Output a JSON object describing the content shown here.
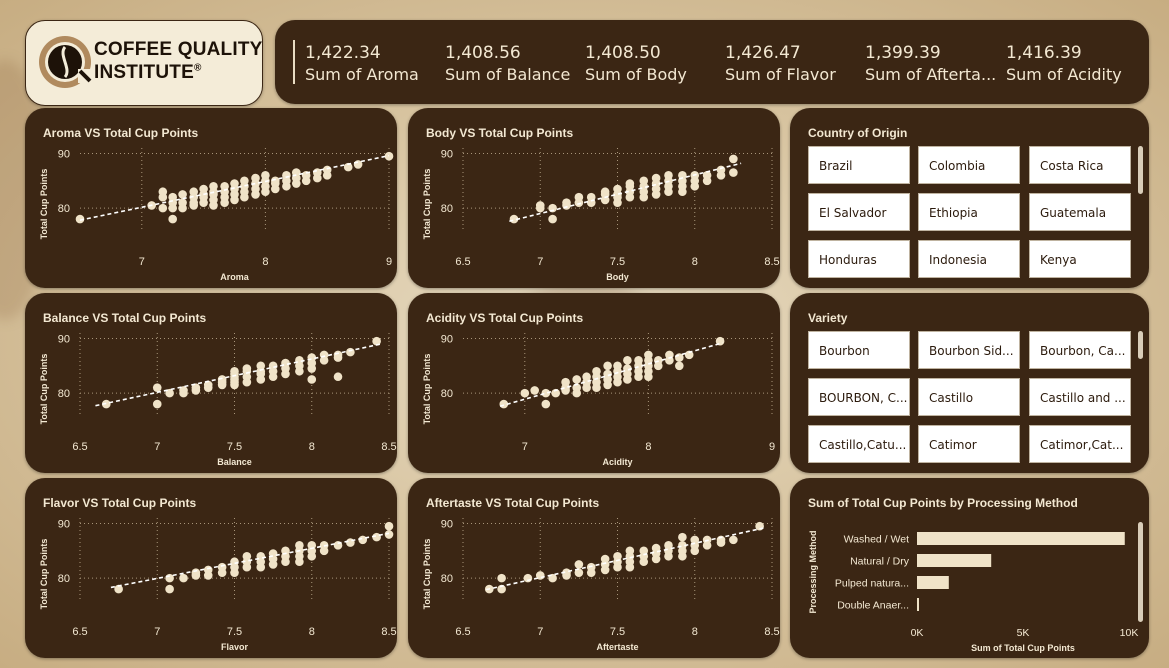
{
  "logo": {
    "line1": "COFFEE QUALITY",
    "line2": "INSTITUTE",
    "mark": "®"
  },
  "kpis": [
    {
      "value": "1,422.34",
      "label": "Sum of Aroma"
    },
    {
      "value": "1,408.56",
      "label": "Sum of Balance"
    },
    {
      "value": "1,408.50",
      "label": "Sum of Body"
    },
    {
      "value": "1,426.47",
      "label": "Sum of Flavor"
    },
    {
      "value": "1,399.39",
      "label": "Sum of Afterta..."
    },
    {
      "value": "1,416.39",
      "label": "Sum of Acidity"
    }
  ],
  "slicers": {
    "country": {
      "title": "Country of Origin",
      "items": [
        "Brazil",
        "Colombia",
        "Costa Rica",
        "El Salvador",
        "Ethiopia",
        "Guatemala",
        "Honduras",
        "Indonesia",
        "Kenya"
      ]
    },
    "variety": {
      "title": "Variety",
      "items": [
        "Bourbon",
        "Bourbon Sid...",
        "Bourbon, Ca...",
        "BOURBON, C...",
        "Castillo",
        "Castillo and ...",
        "Castillo,Catu...",
        "Catimor",
        "Catimor,Cat..."
      ]
    }
  },
  "colors": {
    "panel": "#3b2614",
    "marker": "#f0e3c8",
    "text": "#f3e8d2",
    "grid": "#a8957a"
  },
  "chart_data": [
    {
      "type": "scatter",
      "title": "Aroma VS Total Cup Points",
      "xlabel": "Aroma",
      "ylabel": "Total Cup Points",
      "xlim": [
        6.5,
        9
      ],
      "ylim": [
        76,
        91
      ],
      "xticks": [
        7,
        8,
        9
      ],
      "yticks": [
        80,
        90
      ],
      "trendline": [
        [
          6.5,
          77.8
        ],
        [
          9,
          89.6
        ]
      ],
      "points": [
        [
          6.5,
          78
        ],
        [
          7.08,
          80.5
        ],
        [
          7.17,
          80
        ],
        [
          7.17,
          82
        ],
        [
          7.17,
          83
        ],
        [
          7.25,
          78
        ],
        [
          7.25,
          80
        ],
        [
          7.25,
          81
        ],
        [
          7.25,
          82
        ],
        [
          7.33,
          80
        ],
        [
          7.33,
          81
        ],
        [
          7.33,
          82.5
        ],
        [
          7.42,
          80.5
        ],
        [
          7.42,
          81
        ],
        [
          7.42,
          82
        ],
        [
          7.42,
          83
        ],
        [
          7.5,
          81
        ],
        [
          7.5,
          82
        ],
        [
          7.5,
          82.5
        ],
        [
          7.5,
          83.5
        ],
        [
          7.58,
          80.5
        ],
        [
          7.58,
          81.5
        ],
        [
          7.58,
          82.5
        ],
        [
          7.58,
          83
        ],
        [
          7.58,
          84
        ],
        [
          7.67,
          81
        ],
        [
          7.67,
          82
        ],
        [
          7.67,
          83
        ],
        [
          7.67,
          84
        ],
        [
          7.75,
          81.5
        ],
        [
          7.75,
          82.5
        ],
        [
          7.75,
          83.5
        ],
        [
          7.75,
          84.5
        ],
        [
          7.83,
          82
        ],
        [
          7.83,
          83
        ],
        [
          7.83,
          84
        ],
        [
          7.83,
          85
        ],
        [
          7.92,
          82.5
        ],
        [
          7.92,
          83.5
        ],
        [
          7.92,
          84.5
        ],
        [
          7.92,
          85.5
        ],
        [
          8.0,
          83
        ],
        [
          8.0,
          84
        ],
        [
          8.0,
          85
        ],
        [
          8.0,
          86
        ],
        [
          8.08,
          83.5
        ],
        [
          8.08,
          84.5
        ],
        [
          8.08,
          85
        ],
        [
          8.17,
          84
        ],
        [
          8.17,
          85
        ],
        [
          8.17,
          86
        ],
        [
          8.25,
          84.5
        ],
        [
          8.25,
          85.5
        ],
        [
          8.25,
          86.5
        ],
        [
          8.33,
          85
        ],
        [
          8.33,
          86
        ],
        [
          8.42,
          85.5
        ],
        [
          8.42,
          86.5
        ],
        [
          8.5,
          86
        ],
        [
          8.5,
          87
        ],
        [
          8.67,
          87.5
        ],
        [
          8.75,
          88
        ],
        [
          9.0,
          89.5
        ]
      ]
    },
    {
      "type": "scatter",
      "title": "Body VS Total Cup Points",
      "xlabel": "Body",
      "ylabel": "Total Cup Points",
      "xlim": [
        6.5,
        8.5
      ],
      "ylim": [
        76,
        91
      ],
      "xticks": [
        6.5,
        7.0,
        7.5,
        8.0,
        8.5
      ],
      "yticks": [
        80,
        90
      ],
      "trendline": [
        [
          6.8,
          77.6
        ],
        [
          8.3,
          88.2
        ]
      ],
      "points": [
        [
          6.83,
          78
        ],
        [
          7.0,
          80.5
        ],
        [
          7.0,
          80
        ],
        [
          7.08,
          78
        ],
        [
          7.08,
          80
        ],
        [
          7.17,
          80.5
        ],
        [
          7.17,
          81
        ],
        [
          7.25,
          81
        ],
        [
          7.25,
          82
        ],
        [
          7.33,
          81
        ],
        [
          7.33,
          82
        ],
        [
          7.42,
          81.5
        ],
        [
          7.42,
          82.5
        ],
        [
          7.42,
          83
        ],
        [
          7.5,
          81
        ],
        [
          7.5,
          82
        ],
        [
          7.5,
          82.5
        ],
        [
          7.5,
          83.5
        ],
        [
          7.58,
          82
        ],
        [
          7.58,
          83
        ],
        [
          7.58,
          84
        ],
        [
          7.58,
          84.5
        ],
        [
          7.67,
          82
        ],
        [
          7.67,
          83
        ],
        [
          7.67,
          84
        ],
        [
          7.67,
          85
        ],
        [
          7.75,
          82.5
        ],
        [
          7.75,
          83.5
        ],
        [
          7.75,
          84.5
        ],
        [
          7.75,
          85.5
        ],
        [
          7.83,
          83
        ],
        [
          7.83,
          84
        ],
        [
          7.83,
          85
        ],
        [
          7.83,
          86
        ],
        [
          7.92,
          83
        ],
        [
          7.92,
          84
        ],
        [
          7.92,
          85
        ],
        [
          7.92,
          86
        ],
        [
          8.0,
          84
        ],
        [
          8.0,
          85
        ],
        [
          8.0,
          86
        ],
        [
          8.08,
          85
        ],
        [
          8.08,
          86
        ],
        [
          8.17,
          86
        ],
        [
          8.17,
          87
        ],
        [
          8.25,
          86.5
        ],
        [
          8.25,
          89
        ]
      ]
    },
    {
      "type": "scatter",
      "title": "Balance VS Total Cup Points",
      "xlabel": "Balance",
      "ylabel": "Total Cup Points",
      "xlim": [
        6.5,
        8.5
      ],
      "ylim": [
        76,
        91
      ],
      "xticks": [
        6.5,
        7.0,
        7.5,
        8.0,
        8.5
      ],
      "yticks": [
        80,
        90
      ],
      "trendline": [
        [
          6.6,
          77.7
        ],
        [
          8.45,
          89
        ]
      ],
      "points": [
        [
          6.67,
          78
        ],
        [
          7.0,
          78
        ],
        [
          7.0,
          81
        ],
        [
          7.08,
          80
        ],
        [
          7.17,
          80
        ],
        [
          7.17,
          80.5
        ],
        [
          7.25,
          80.5
        ],
        [
          7.25,
          81
        ],
        [
          7.33,
          81
        ],
        [
          7.33,
          81.5
        ],
        [
          7.42,
          81.5
        ],
        [
          7.42,
          82
        ],
        [
          7.42,
          82.5
        ],
        [
          7.5,
          81.5
        ],
        [
          7.5,
          82
        ],
        [
          7.5,
          82.5
        ],
        [
          7.5,
          83
        ],
        [
          7.5,
          83.5
        ],
        [
          7.5,
          84
        ],
        [
          7.58,
          82
        ],
        [
          7.58,
          83
        ],
        [
          7.58,
          84
        ],
        [
          7.58,
          84.5
        ],
        [
          7.67,
          82.5
        ],
        [
          7.67,
          83.5
        ],
        [
          7.67,
          84
        ],
        [
          7.67,
          85
        ],
        [
          7.75,
          83
        ],
        [
          7.75,
          84
        ],
        [
          7.75,
          85
        ],
        [
          7.83,
          83.5
        ],
        [
          7.83,
          84.5
        ],
        [
          7.83,
          85.5
        ],
        [
          7.92,
          84
        ],
        [
          7.92,
          85
        ],
        [
          7.92,
          86
        ],
        [
          8.0,
          84.5
        ],
        [
          8.0,
          85.5
        ],
        [
          8.0,
          86.5
        ],
        [
          8.0,
          82.5
        ],
        [
          8.08,
          86
        ],
        [
          8.08,
          87
        ],
        [
          8.17,
          86.5
        ],
        [
          8.17,
          87
        ],
        [
          8.17,
          83
        ],
        [
          8.25,
          87.5
        ],
        [
          8.42,
          89.5
        ]
      ]
    },
    {
      "type": "scatter",
      "title": "Acidity VS Total Cup Points",
      "xlabel": "Acidity",
      "ylabel": "Total Cup Points",
      "xlim": [
        6.5,
        9
      ],
      "ylim": [
        76,
        91
      ],
      "xticks": [
        7,
        8,
        9
      ],
      "yticks": [
        80,
        90
      ],
      "trendline": [
        [
          6.8,
          77.6
        ],
        [
          8.6,
          89.2
        ]
      ],
      "points": [
        [
          6.83,
          78
        ],
        [
          7.0,
          80
        ],
        [
          7.08,
          80.5
        ],
        [
          7.17,
          78
        ],
        [
          7.17,
          80
        ],
        [
          7.25,
          80
        ],
        [
          7.33,
          80.5
        ],
        [
          7.33,
          81
        ],
        [
          7.33,
          82
        ],
        [
          7.42,
          80
        ],
        [
          7.42,
          81
        ],
        [
          7.42,
          82.5
        ],
        [
          7.5,
          81
        ],
        [
          7.5,
          82
        ],
        [
          7.5,
          83
        ],
        [
          7.58,
          81
        ],
        [
          7.58,
          82
        ],
        [
          7.58,
          83
        ],
        [
          7.58,
          84
        ],
        [
          7.67,
          81.5
        ],
        [
          7.67,
          82.5
        ],
        [
          7.67,
          83.5
        ],
        [
          7.67,
          85
        ],
        [
          7.75,
          82
        ],
        [
          7.75,
          83
        ],
        [
          7.75,
          84
        ],
        [
          7.75,
          85
        ],
        [
          7.83,
          82.5
        ],
        [
          7.83,
          83.5
        ],
        [
          7.83,
          84.5
        ],
        [
          7.83,
          86
        ],
        [
          7.92,
          83
        ],
        [
          7.92,
          84
        ],
        [
          7.92,
          85
        ],
        [
          7.92,
          86
        ],
        [
          8.0,
          83
        ],
        [
          8.0,
          84
        ],
        [
          8.0,
          85
        ],
        [
          8.0,
          86
        ],
        [
          8.0,
          87
        ],
        [
          8.08,
          85
        ],
        [
          8.08,
          86
        ],
        [
          8.17,
          86
        ],
        [
          8.17,
          87
        ],
        [
          8.25,
          85
        ],
        [
          8.25,
          86.5
        ],
        [
          8.33,
          87
        ],
        [
          8.58,
          89.5
        ]
      ]
    },
    {
      "type": "scatter",
      "title": "Flavor VS Total Cup Points",
      "xlabel": "Flavor",
      "ylabel": "Total Cup Points",
      "xlim": [
        6.5,
        8.5
      ],
      "ylim": [
        76,
        91
      ],
      "xticks": [
        6.5,
        7.0,
        7.5,
        8.0,
        8.5
      ],
      "yticks": [
        80,
        90
      ],
      "trendline": [
        [
          6.7,
          78.3
        ],
        [
          8.5,
          88.2
        ]
      ],
      "points": [
        [
          6.75,
          78
        ],
        [
          7.08,
          78
        ],
        [
          7.08,
          80
        ],
        [
          7.17,
          80
        ],
        [
          7.25,
          80.5
        ],
        [
          7.25,
          81
        ],
        [
          7.33,
          80.5
        ],
        [
          7.33,
          81.5
        ],
        [
          7.42,
          81
        ],
        [
          7.42,
          82
        ],
        [
          7.5,
          81
        ],
        [
          7.5,
          82
        ],
        [
          7.5,
          83
        ],
        [
          7.58,
          82
        ],
        [
          7.58,
          83
        ],
        [
          7.58,
          84
        ],
        [
          7.67,
          82
        ],
        [
          7.67,
          83
        ],
        [
          7.67,
          84
        ],
        [
          7.75,
          82.5
        ],
        [
          7.75,
          83.5
        ],
        [
          7.75,
          84.5
        ],
        [
          7.83,
          83
        ],
        [
          7.83,
          84
        ],
        [
          7.83,
          85
        ],
        [
          7.92,
          83
        ],
        [
          7.92,
          84
        ],
        [
          7.92,
          85
        ],
        [
          7.92,
          86
        ],
        [
          8.0,
          84
        ],
        [
          8.0,
          85
        ],
        [
          8.0,
          86
        ],
        [
          8.08,
          85
        ],
        [
          8.08,
          86
        ],
        [
          8.17,
          86
        ],
        [
          8.25,
          86.5
        ],
        [
          8.33,
          87
        ],
        [
          8.42,
          87.5
        ],
        [
          8.5,
          88
        ],
        [
          8.5,
          89.5
        ]
      ]
    },
    {
      "type": "scatter",
      "title": "Aftertaste VS Total Cup Points",
      "xlabel": "Aftertaste",
      "ylabel": "Total Cup Points",
      "xlim": [
        6.5,
        8.5
      ],
      "ylim": [
        76,
        91
      ],
      "xticks": [
        6.5,
        7.0,
        7.5,
        8.0,
        8.5
      ],
      "yticks": [
        80,
        90
      ],
      "trendline": [
        [
          6.65,
          77.9
        ],
        [
          8.45,
          89.2
        ]
      ],
      "points": [
        [
          6.67,
          78
        ],
        [
          6.75,
          78
        ],
        [
          6.75,
          80
        ],
        [
          6.92,
          80
        ],
        [
          7.0,
          80.5
        ],
        [
          7.08,
          80
        ],
        [
          7.17,
          80.5
        ],
        [
          7.17,
          81
        ],
        [
          7.25,
          81
        ],
        [
          7.25,
          82.5
        ],
        [
          7.33,
          81
        ],
        [
          7.33,
          82
        ],
        [
          7.42,
          81.5
        ],
        [
          7.42,
          82.5
        ],
        [
          7.42,
          83.5
        ],
        [
          7.5,
          82
        ],
        [
          7.5,
          83
        ],
        [
          7.5,
          84
        ],
        [
          7.58,
          82
        ],
        [
          7.58,
          83
        ],
        [
          7.58,
          84
        ],
        [
          7.58,
          85
        ],
        [
          7.67,
          83
        ],
        [
          7.67,
          84
        ],
        [
          7.67,
          85
        ],
        [
          7.75,
          83.5
        ],
        [
          7.75,
          84.5
        ],
        [
          7.75,
          85.5
        ],
        [
          7.83,
          84
        ],
        [
          7.83,
          85
        ],
        [
          7.83,
          86
        ],
        [
          7.92,
          84
        ],
        [
          7.92,
          85
        ],
        [
          7.92,
          86
        ],
        [
          7.92,
          87.5
        ],
        [
          8.0,
          85
        ],
        [
          8.0,
          86
        ],
        [
          8.0,
          87
        ],
        [
          8.08,
          86
        ],
        [
          8.08,
          87
        ],
        [
          8.17,
          86.5
        ],
        [
          8.17,
          87
        ],
        [
          8.25,
          87
        ],
        [
          8.42,
          89.5
        ]
      ]
    },
    {
      "type": "bar",
      "orientation": "horizontal",
      "title": "Sum of Total Cup Points by Processing Method",
      "xlabel": "Sum of Total Cup Points",
      "ylabel": "Processing Method",
      "categories": [
        "Washed / Wet",
        "Natural / Dry",
        "Pulped natura...",
        "Double Anaer..."
      ],
      "values": [
        9800,
        3500,
        1500,
        90
      ],
      "xlim": [
        0,
        10000
      ],
      "xticks": [
        0,
        5000,
        10000
      ],
      "xtick_labels": [
        "0K",
        "5K",
        "10K"
      ]
    }
  ]
}
